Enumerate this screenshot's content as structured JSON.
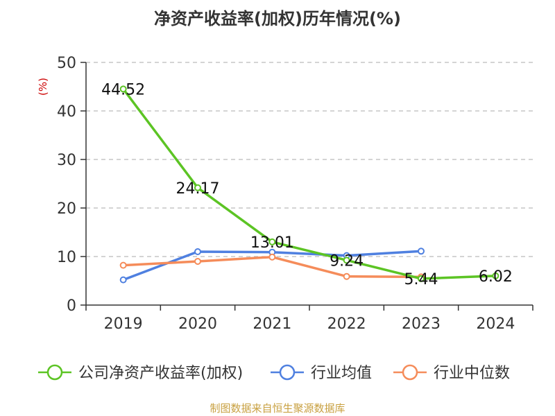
{
  "chart_data": {
    "type": "line",
    "title": "净资产收益率(加权)历年情况(%)",
    "y_unit": "(%)",
    "categories": [
      "2019",
      "2020",
      "2021",
      "2022",
      "2023",
      "2024"
    ],
    "ylim": [
      0,
      50
    ],
    "yticks": [
      0,
      10,
      20,
      30,
      40,
      50
    ],
    "grid": true,
    "legend_position": "bottom",
    "series": [
      {
        "name": "公司净资产收益率(加权)",
        "color": "#5cc424",
        "values": [
          44.52,
          24.17,
          13.01,
          9.24,
          5.44,
          6.02
        ],
        "labels": [
          "44.52",
          "24.17",
          "13.01",
          "9.24",
          "5.44",
          "6.02"
        ]
      },
      {
        "name": "行业均值",
        "color": "#4f80e0",
        "values": [
          5.2,
          11.0,
          10.9,
          10.2,
          11.1,
          null
        ]
      },
      {
        "name": "行业中位数",
        "color": "#f58c5a",
        "values": [
          8.2,
          9.0,
          9.9,
          5.9,
          5.8,
          null
        ]
      }
    ],
    "source": "制图数据来自恒生聚源数据库"
  }
}
